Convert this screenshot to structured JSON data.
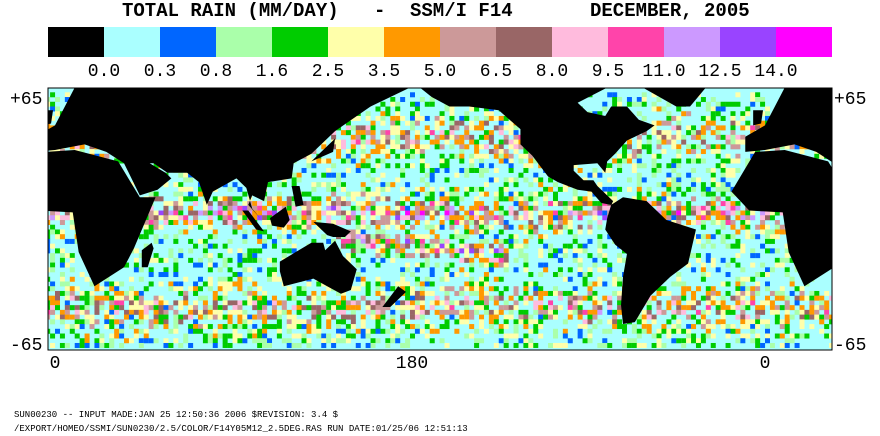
{
  "header": {
    "title": "TOTAL RAIN (MM/DAY)",
    "separator": "-",
    "instrument": "SSM/I F14",
    "period": "DECEMBER, 2005"
  },
  "legend": {
    "colors": [
      "#000000",
      "#aaffff",
      "#0066ff",
      "#aaffaa",
      "#00cc00",
      "#ffffaa",
      "#ff9900",
      "#cc9999",
      "#996666",
      "#ffbbdd",
      "#ff44aa",
      "#cc99ff",
      "#9944ff",
      "#ff00ff"
    ],
    "labels": [
      "0.0",
      "0.3",
      "0.8",
      "1.6",
      "2.5",
      "3.5",
      "5.0",
      "6.5",
      "8.0",
      "9.5",
      "11.0",
      "12.5",
      "14.0"
    ]
  },
  "axis": {
    "left": [
      "+65",
      "-65"
    ],
    "right": [
      "+65",
      "-65"
    ],
    "bottom": [
      "0",
      "180",
      "0"
    ]
  },
  "footer": [
    "SUN00230  --  INPUT MADE:JAN 25 12:50:36 2006 $REVISION: 3.4 $",
    "/EXPORT/HOMEO/SSMI/SUN0230/2.5/COLOR/F14Y05M12_2.5DEG.RAS  RUN DATE:01/25/06 12:51:13"
  ]
}
